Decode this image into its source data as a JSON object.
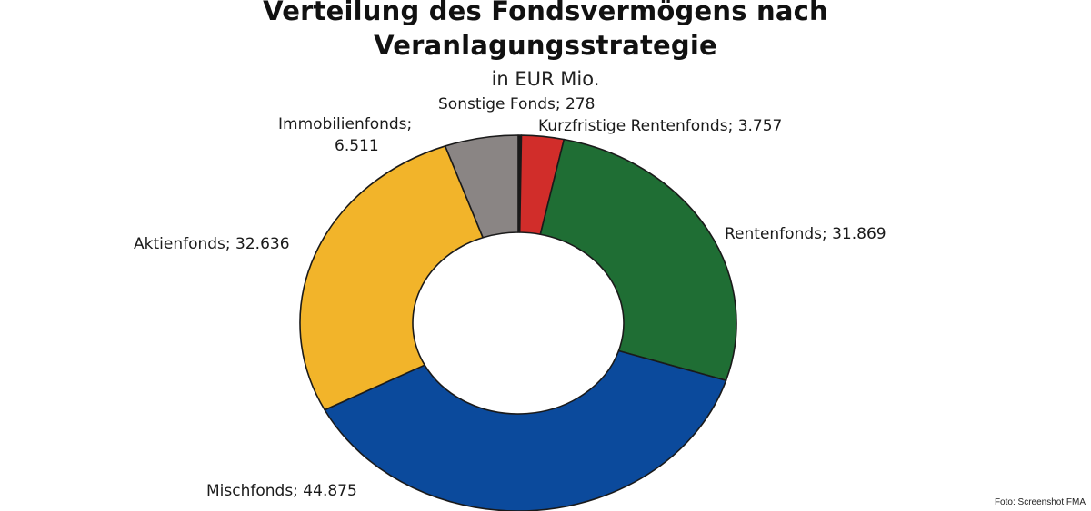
{
  "chart_data": {
    "type": "donut",
    "title": "Verteilung des Fondsvermögens nach Veranlagungsstrategie",
    "title_lines": [
      "Verteilung des Fondsvermögens nach",
      "Veranlagungsstrategie"
    ],
    "subtitle": "in EUR Mio.",
    "start": "12 o'clock",
    "direction": "clockwise",
    "slices": [
      {
        "category": "Sonstige Fonds",
        "value": 278,
        "value_label": "278",
        "color": "#1a1a1a"
      },
      {
        "category": "Kurzfristige Rentenfonds",
        "value": 3757,
        "value_label": "3.757",
        "color": "#d12d2a"
      },
      {
        "category": "Rentenfonds",
        "value": 31869,
        "value_label": "31.869",
        "color": "#1f6e34"
      },
      {
        "category": "Mischfonds",
        "value": 44875,
        "value_label": "44.875",
        "color": "#0b4a9c"
      },
      {
        "category": "Aktienfonds",
        "value": 32636,
        "value_label": "32.636",
        "color": "#f2b42a"
      },
      {
        "category": "Immobilienfonds",
        "value": 6511,
        "value_label": "6.511",
        "color": "#8a8584"
      }
    ],
    "labels": {
      "sonstige": "Sonstige Fonds; 278",
      "kurzfristige": "Kurzfristige Rentenfonds; 3.757",
      "rentenfonds": "Rentenfonds; 31.869",
      "mischfonds": "Mischfonds; 44.875",
      "aktienfonds": "Aktienfonds; 32.636",
      "immobilien_line1": "Immobilienfonds;",
      "immobilien_line2": "6.511"
    },
    "legend": "none",
    "grid": false
  },
  "credit": "Foto: Screenshot FMA"
}
